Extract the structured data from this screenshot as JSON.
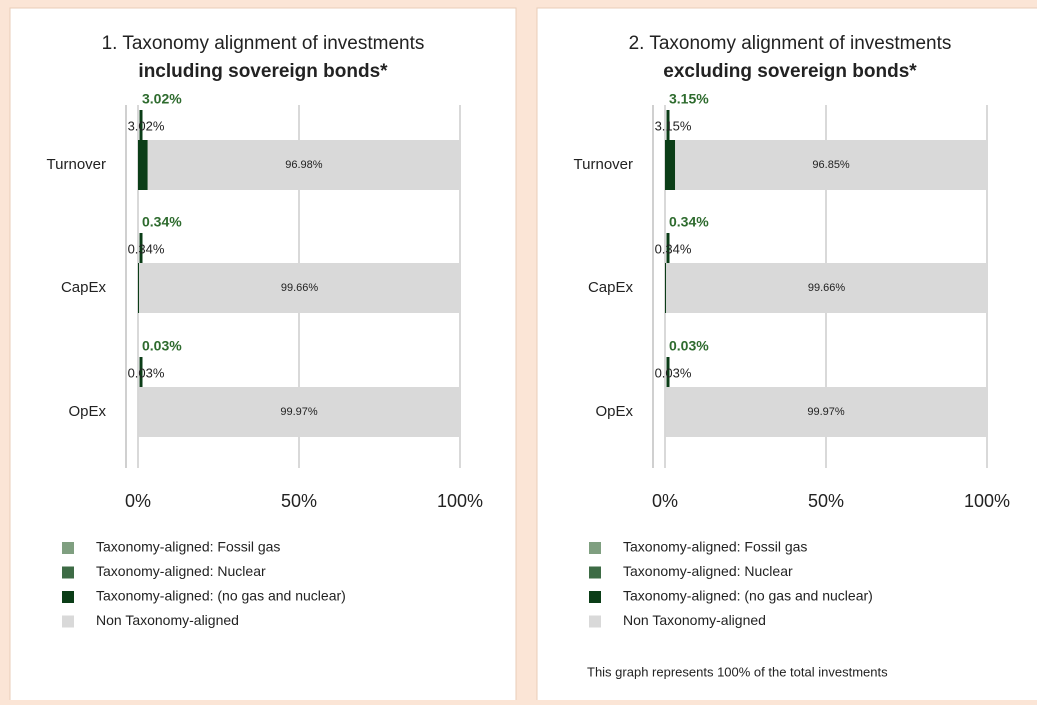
{
  "chart_data": [
    {
      "type": "bar",
      "orientation": "horizontal",
      "stacked": true,
      "title": "1. Taxonomy alignment of investments",
      "subtitle": "including sovereign bonds*",
      "categories": [
        "Turnover",
        "CapEx",
        "OpEx"
      ],
      "series": [
        {
          "name": "Taxonomy-aligned: Fossil gas",
          "color": "#7f9f80",
          "values": [
            0,
            0,
            0
          ]
        },
        {
          "name": "Taxonomy-aligned: Nuclear",
          "color": "#3d6b45",
          "values": [
            0,
            0,
            0
          ]
        },
        {
          "name": "Taxonomy-aligned: (no gas and nuclear)",
          "color": "#0b3d17",
          "values": [
            3.02,
            0.34,
            0.03
          ],
          "value_labels": [
            "3.02%",
            "0.34%",
            "0.03%"
          ]
        },
        {
          "name": "Non Taxonomy-aligned",
          "color": "#d9d9d9",
          "values": [
            96.98,
            99.66,
            99.97
          ],
          "value_labels": [
            "96.98%",
            "99.66%",
            "99.97%"
          ]
        }
      ],
      "xlim": [
        0,
        100
      ],
      "xticks": [
        {
          "value": 0,
          "label": "0%"
        },
        {
          "value": 50,
          "label": "50%"
        },
        {
          "value": 100,
          "label": "100%"
        }
      ],
      "grid": true
    },
    {
      "type": "bar",
      "orientation": "horizontal",
      "stacked": true,
      "title": "2. Taxonomy alignment of investments",
      "subtitle": "excluding sovereign bonds*",
      "categories": [
        "Turnover",
        "CapEx",
        "OpEx"
      ],
      "series": [
        {
          "name": "Taxonomy-aligned: Fossil gas",
          "color": "#7f9f80",
          "values": [
            0,
            0,
            0
          ]
        },
        {
          "name": "Taxonomy-aligned: Nuclear",
          "color": "#3d6b45",
          "values": [
            0,
            0,
            0
          ]
        },
        {
          "name": "Taxonomy-aligned: (no gas and nuclear)",
          "color": "#0b3d17",
          "values": [
            3.15,
            0.34,
            0.03
          ],
          "value_labels": [
            "3.15%",
            "0.34%",
            "0.03%"
          ]
        },
        {
          "name": "Non Taxonomy-aligned",
          "color": "#d9d9d9",
          "values": [
            96.85,
            99.66,
            99.97
          ],
          "value_labels": [
            "96.85%",
            "99.66%",
            "99.97%"
          ]
        }
      ],
      "xlim": [
        0,
        100
      ],
      "xticks": [
        {
          "value": 0,
          "label": "0%"
        },
        {
          "value": 50,
          "label": "50%"
        },
        {
          "value": 100,
          "label": "100%"
        }
      ],
      "grid": true,
      "note": "This graph represents 100% of the total investments"
    }
  ]
}
